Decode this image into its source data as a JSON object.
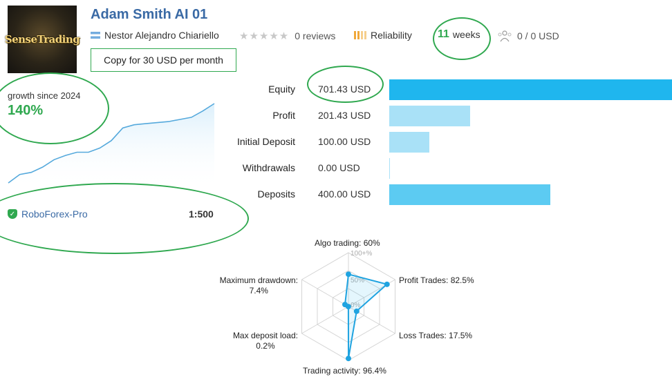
{
  "header": {
    "logo_text": "SenseTrading",
    "title": "Adam Smith AI 01",
    "author": "Nestor Alejandro Chiariello",
    "reviews": "0 reviews",
    "reliability": "Reliability",
    "weeks_num": "11",
    "weeks_label": "weeks",
    "subscribers": "0 / 0 USD",
    "copy_button": "Copy for 30 USD per month"
  },
  "growth": {
    "label": "growth since 2024",
    "value": "140%",
    "chart_data": {
      "type": "line",
      "x": [
        0,
        1,
        2,
        3,
        4,
        5,
        6,
        7,
        8,
        9,
        10,
        11,
        12,
        13,
        14,
        15,
        16,
        17,
        18
      ],
      "y": [
        0,
        8,
        10,
        15,
        22,
        26,
        29,
        29,
        33,
        40,
        52,
        55,
        56,
        57,
        58,
        60,
        62,
        68,
        75
      ]
    }
  },
  "broker": {
    "name": "RoboForex-Pro",
    "leverage": "1:500"
  },
  "stats": {
    "max": 701.43,
    "items": [
      {
        "label": "Equity",
        "value": "701.43 USD",
        "amount": 701.43,
        "color": "#1fb6ee"
      },
      {
        "label": "Profit",
        "value": "201.43 USD",
        "amount": 201.43,
        "color": "#a9e1f7"
      },
      {
        "label": "Initial Deposit",
        "value": "100.00 USD",
        "amount": 100.0,
        "color": "#a9e1f7"
      },
      {
        "label": "Withdrawals",
        "value": "0.00 USD",
        "amount": 0.0,
        "color": "#a9e1f7"
      },
      {
        "label": "Deposits",
        "value": "400.00 USD",
        "amount": 400.0,
        "color": "#5ccbf2"
      }
    ]
  },
  "radar": {
    "chart_data": {
      "type": "radar",
      "axes": [
        {
          "label": "Algo trading: 60%",
          "value": 60
        },
        {
          "label": "Profit Trades: 82.5%",
          "value": 82.5
        },
        {
          "label": "Loss Trades: 17.5%",
          "value": 17.5
        },
        {
          "label": "Trading activity: 96.4%",
          "value": 96.4
        },
        {
          "label": "Max deposit load:\n0.2%",
          "value": 0.2
        },
        {
          "label": "Maximum drawdown:\n7.4%",
          "value": 7.4
        }
      ],
      "ticks": [
        "100+%",
        "50%",
        "0%"
      ],
      "range": [
        0,
        100
      ]
    }
  }
}
